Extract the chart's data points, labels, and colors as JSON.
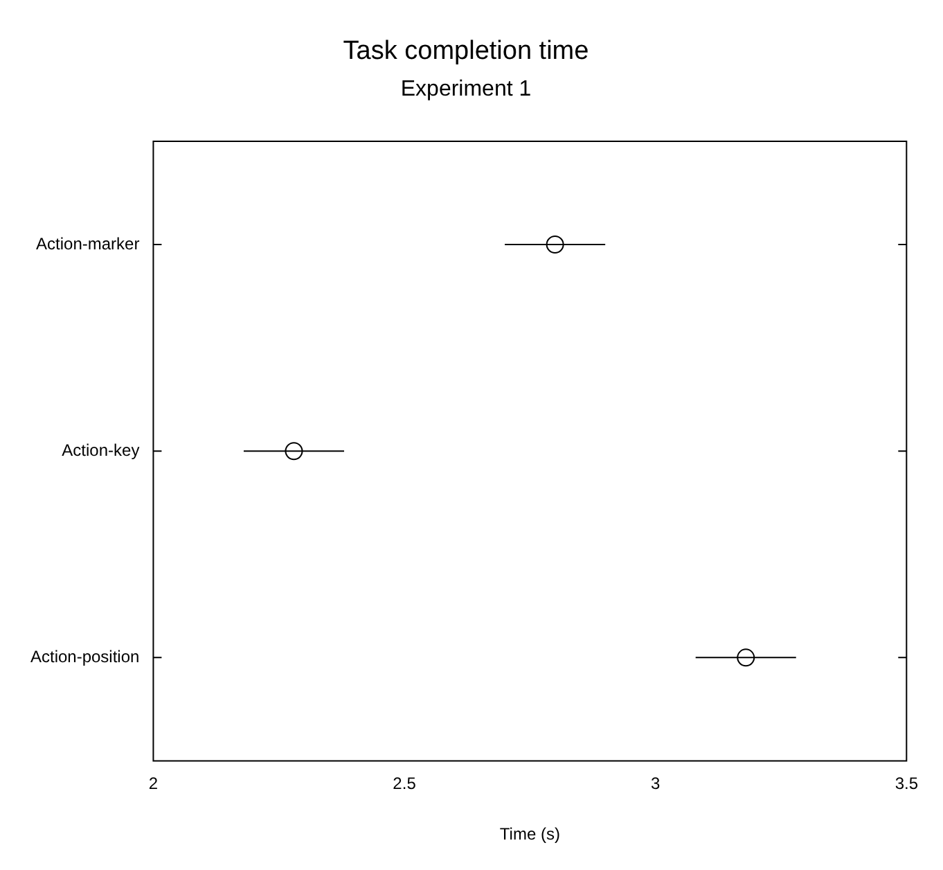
{
  "chart_data": {
    "type": "scatter",
    "title": "Task completion time",
    "subtitle": "Experiment 1",
    "xlabel": "Time (s)",
    "orientation": "horizontal",
    "categories": [
      "Action-marker",
      "Action-key",
      "Action-position"
    ],
    "values": [
      2.8,
      2.28,
      3.18
    ],
    "errors": [
      0.1,
      0.1,
      0.1
    ],
    "color": "#000000",
    "marker": "circle",
    "grid": false,
    "legend": false,
    "xlim": [
      2,
      3.5
    ],
    "xticks": [
      2,
      2.5,
      3,
      3.5
    ]
  }
}
